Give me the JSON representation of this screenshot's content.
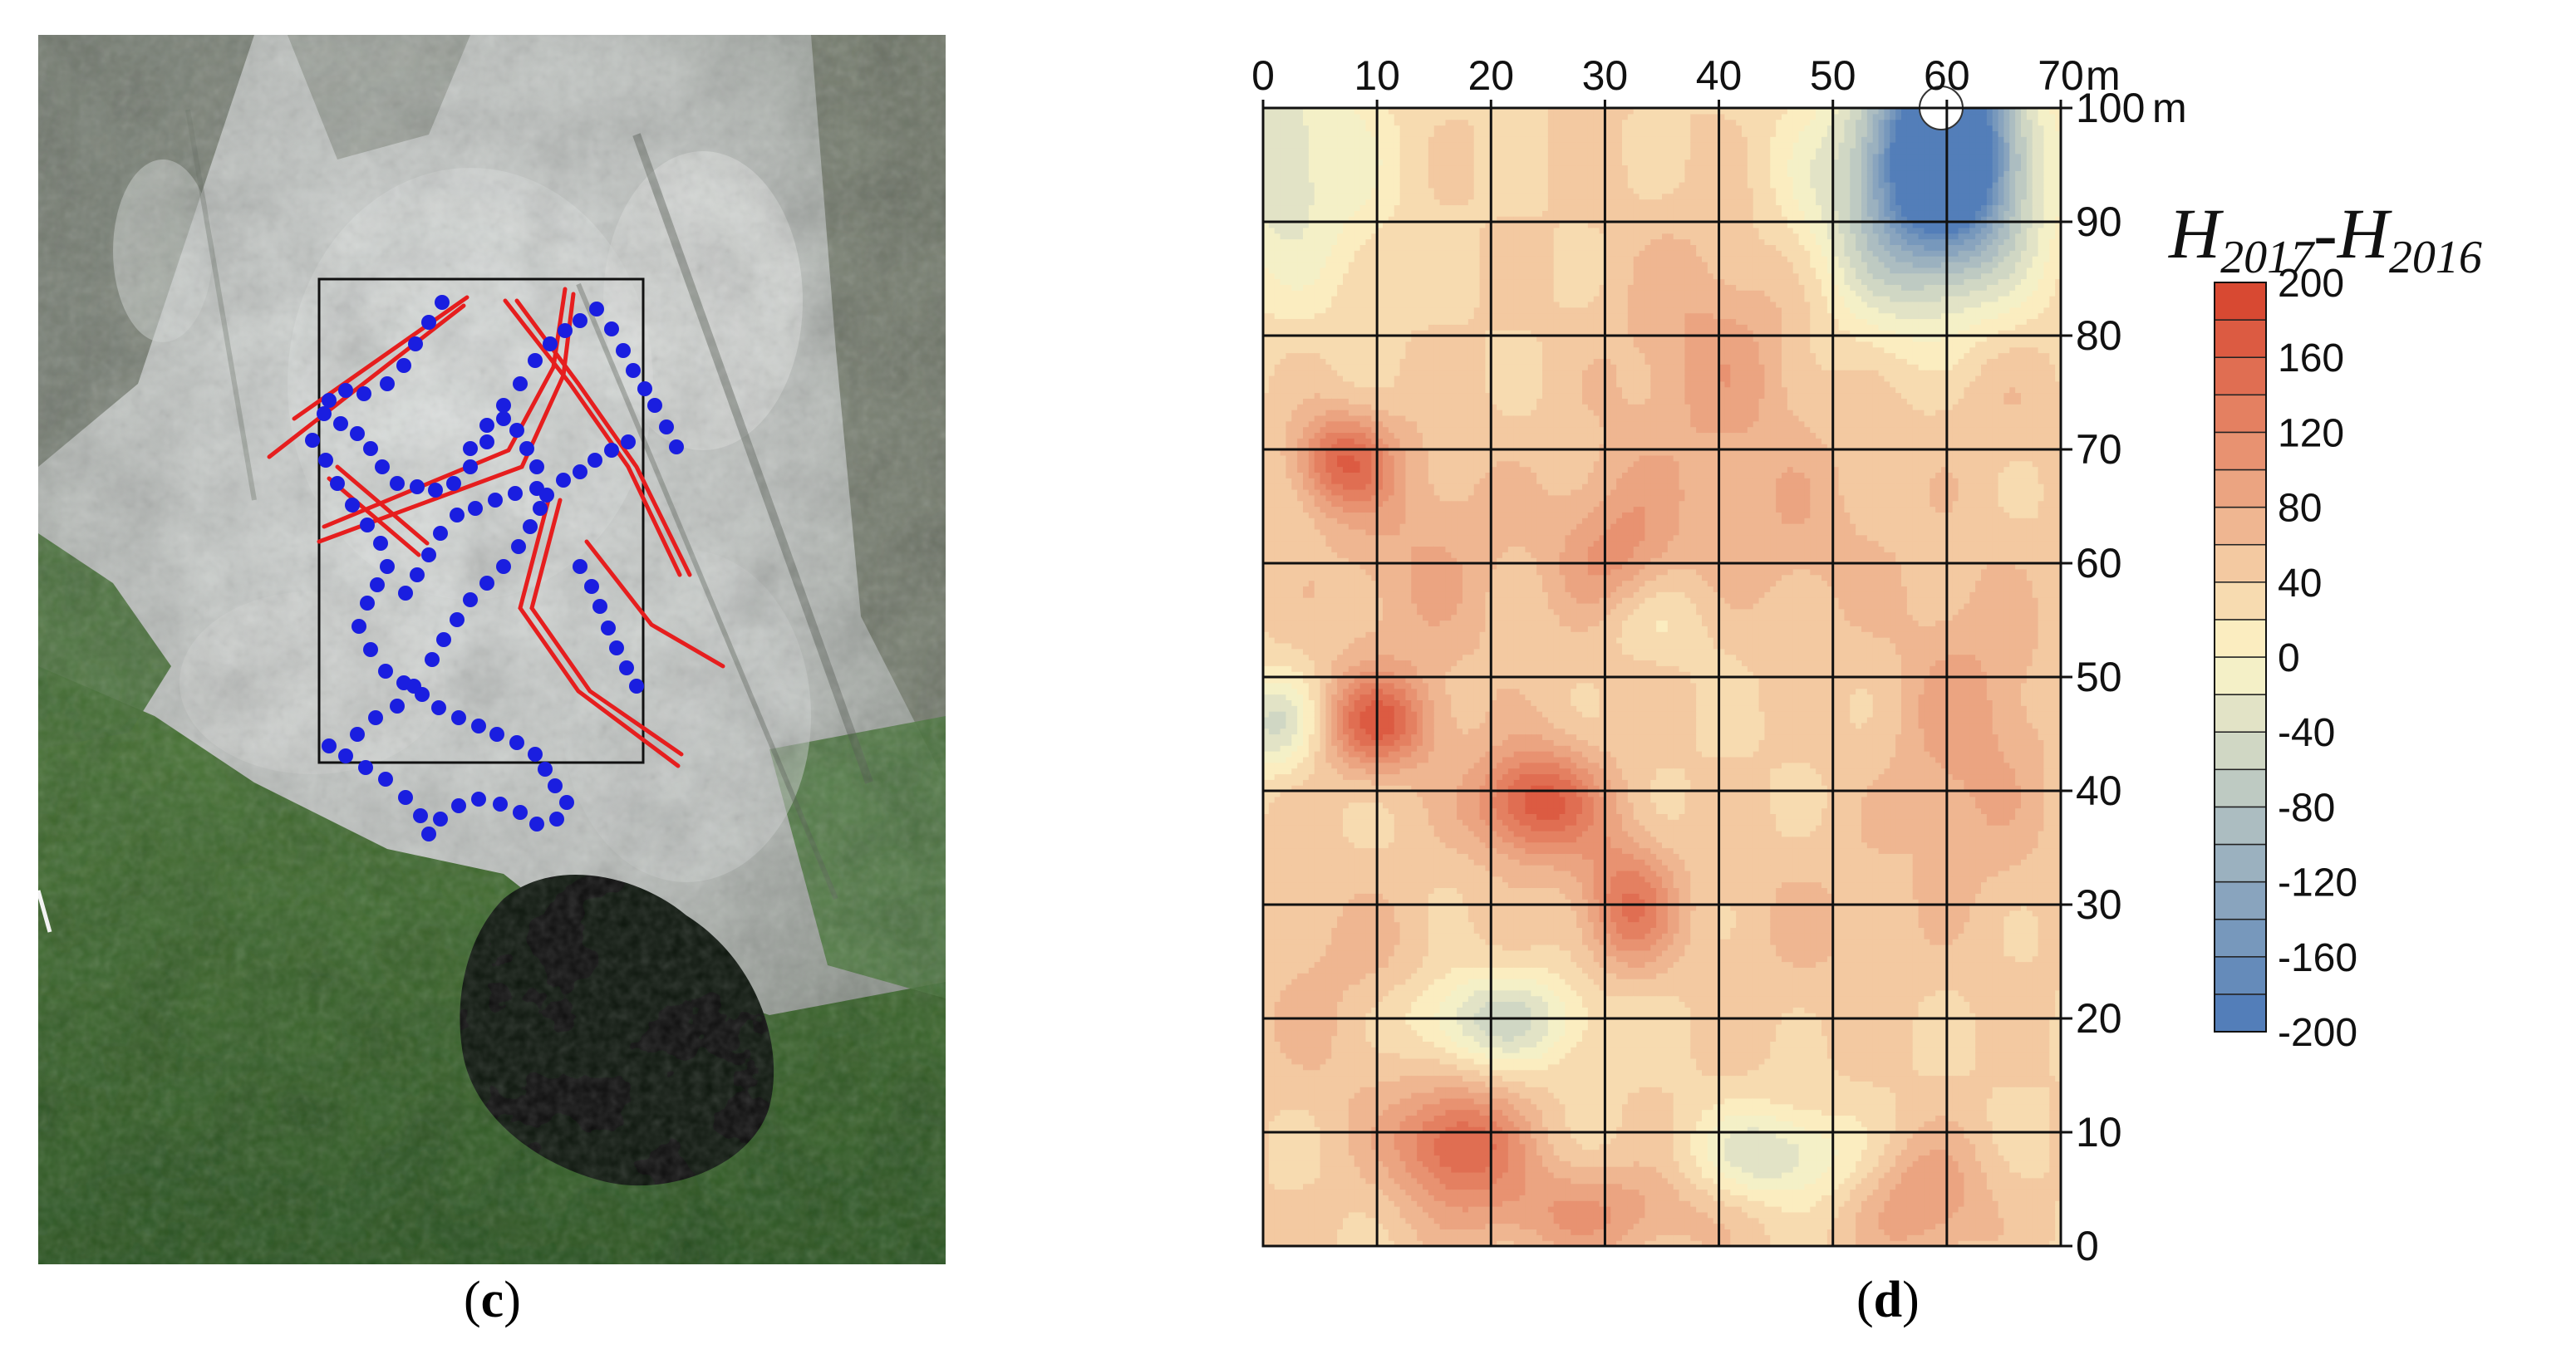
{
  "captions": {
    "left": "c",
    "right": "d"
  },
  "photo_panel": {
    "colors": {
      "rock": "#c9ccca",
      "vegetation": "#3d6b2e",
      "pond": "#0d1410",
      "fracture": "#e61e1e",
      "points": "#1a1ee0"
    }
  },
  "chart_data": {
    "type": "heatmap",
    "subtype": "filled-contour",
    "title_parts": {
      "main_a": "H",
      "sub_a": "2017",
      "dash": "-",
      "main_b": "H",
      "sub_b": "2016"
    },
    "x_unit": "m",
    "y_unit": "m",
    "xlim": [
      0,
      70
    ],
    "ylim": [
      0,
      100
    ],
    "x_ticks": [
      0,
      10,
      20,
      30,
      40,
      50,
      60,
      70
    ],
    "y_ticks": [
      0,
      10,
      20,
      30,
      40,
      50,
      60,
      70,
      80,
      90,
      100
    ],
    "x_tick_labels": [
      "0",
      "10",
      "20",
      "30",
      "40",
      "50",
      "60",
      "70"
    ],
    "y_tick_labels": [
      "0",
      "10",
      "20",
      "30",
      "40",
      "50",
      "60",
      "70",
      "80",
      "90",
      "100"
    ],
    "grid": true,
    "x_axis_position": "top",
    "y_axis_position": "right",
    "legend_position": "right",
    "color_range": [
      -200,
      200
    ],
    "color_levels": [
      -200,
      -180,
      -160,
      -140,
      -120,
      -100,
      -80,
      -60,
      -40,
      -20,
      0,
      20,
      40,
      60,
      80,
      100,
      120,
      140,
      160,
      180,
      200
    ],
    "legend_labels": [
      "200",
      "160",
      "120",
      "80",
      "40",
      "0",
      "-40",
      "-80",
      "-120",
      "-160",
      "-200"
    ],
    "colors": {
      "min": "#4a78b8",
      "zero": "#fdf6c8",
      "max": "#d6402a"
    },
    "features": [
      {
        "x": 60,
        "y": 97,
        "value": -200,
        "sx": 4,
        "sy": 6
      },
      {
        "x": 58,
        "y": 92,
        "value": -100,
        "sx": 7,
        "sy": 8
      },
      {
        "x": 2,
        "y": 95,
        "value": -35,
        "sx": 6,
        "sy": 8
      },
      {
        "x": 1,
        "y": 46,
        "value": -45,
        "sx": 3,
        "sy": 3
      },
      {
        "x": 20,
        "y": 20,
        "value": -50,
        "sx": 6,
        "sy": 3
      },
      {
        "x": 45,
        "y": 8,
        "value": -40,
        "sx": 5,
        "sy": 3
      },
      {
        "x": 33,
        "y": 55,
        "value": -10,
        "sx": 4,
        "sy": 3
      },
      {
        "x": 10,
        "y": 46,
        "value": 160,
        "sx": 3.5,
        "sy": 3
      },
      {
        "x": 24,
        "y": 39,
        "value": 175,
        "sx": 4,
        "sy": 3.5
      },
      {
        "x": 32,
        "y": 30,
        "value": 140,
        "sx": 3,
        "sy": 4
      },
      {
        "x": 17,
        "y": 9,
        "value": 160,
        "sx": 4,
        "sy": 3.5
      },
      {
        "x": 7,
        "y": 69,
        "value": 150,
        "sx": 3,
        "sy": 3
      },
      {
        "x": 31,
        "y": 60,
        "value": 110,
        "sx": 4,
        "sy": 6
      },
      {
        "x": 40,
        "y": 78,
        "value": 90,
        "sx": 6,
        "sy": 8
      },
      {
        "x": 14,
        "y": 60,
        "value": 80,
        "sx": 6,
        "sy": 8
      },
      {
        "x": 62,
        "y": 45,
        "value": 90,
        "sx": 5,
        "sy": 10
      },
      {
        "x": 58,
        "y": 4,
        "value": 100,
        "sx": 4,
        "sy": 4
      },
      {
        "x": 47,
        "y": 62,
        "value": 70,
        "sx": 6,
        "sy": 6
      },
      {
        "x": 8,
        "y": 22,
        "value": 70,
        "sx": 6,
        "sy": 7
      },
      {
        "x": 48,
        "y": 28,
        "value": 60,
        "sx": 6,
        "sy": 6
      },
      {
        "x": 63,
        "y": 75,
        "value": 60,
        "sx": 5,
        "sy": 5
      },
      {
        "x": 28,
        "y": 3,
        "value": 100,
        "sx": 8,
        "sy": 3
      }
    ],
    "base_value": 40
  }
}
